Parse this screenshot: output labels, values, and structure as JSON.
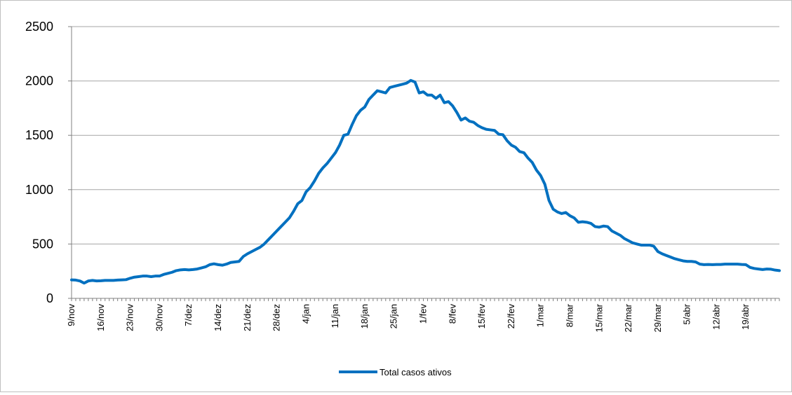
{
  "chart_data": {
    "type": "line",
    "title": "",
    "xlabel": "",
    "ylabel": "",
    "ylim": [
      0,
      2500
    ],
    "yticks": [
      0,
      500,
      1000,
      1500,
      2000,
      2500
    ],
    "x_start": "9/nov",
    "x_ticks": [
      "9/nov",
      "16/nov",
      "23/nov",
      "30/nov",
      "7/dez",
      "14/dez",
      "21/dez",
      "28/dez",
      "4/jan",
      "11/jan",
      "18/jan",
      "25/jan",
      "1/fev",
      "8/fev",
      "15/fev",
      "22/fev",
      "1/mar",
      "8/mar",
      "15/mar",
      "22/mar",
      "29/mar",
      "5/abr",
      "12/abr",
      "19/abr"
    ],
    "grid": "horizontal",
    "legend": "bottom-center",
    "color": "#0070c0",
    "series": [
      {
        "name": "Total casos ativos",
        "values": [
          170,
          168,
          160,
          140,
          160,
          165,
          160,
          162,
          165,
          165,
          165,
          168,
          170,
          172,
          185,
          195,
          200,
          205,
          205,
          200,
          205,
          205,
          220,
          230,
          240,
          255,
          262,
          265,
          262,
          265,
          270,
          280,
          290,
          310,
          318,
          310,
          305,
          315,
          330,
          335,
          340,
          385,
          410,
          430,
          450,
          470,
          500,
          540,
          580,
          620,
          660,
          700,
          740,
          800,
          870,
          900,
          980,
          1020,
          1080,
          1150,
          1200,
          1240,
          1290,
          1340,
          1410,
          1500,
          1510,
          1600,
          1680,
          1730,
          1760,
          1830,
          1870,
          1910,
          1900,
          1890,
          1940,
          1950,
          1960,
          1970,
          1980,
          2005,
          1990,
          1890,
          1900,
          1870,
          1870,
          1840,
          1870,
          1800,
          1810,
          1770,
          1710,
          1640,
          1660,
          1630,
          1620,
          1590,
          1570,
          1555,
          1550,
          1545,
          1510,
          1505,
          1450,
          1410,
          1390,
          1350,
          1340,
          1290,
          1250,
          1180,
          1130,
          1050,
          900,
          820,
          795,
          780,
          790,
          760,
          740,
          700,
          705,
          700,
          690,
          660,
          655,
          665,
          660,
          620,
          600,
          580,
          550,
          530,
          510,
          500,
          490,
          490,
          490,
          480,
          430,
          410,
          395,
          380,
          365,
          355,
          345,
          340,
          340,
          335,
          315,
          310,
          312,
          310,
          312,
          312,
          315,
          315,
          315,
          315,
          312,
          310,
          285,
          275,
          270,
          265,
          270,
          268,
          260,
          255
        ]
      }
    ]
  }
}
